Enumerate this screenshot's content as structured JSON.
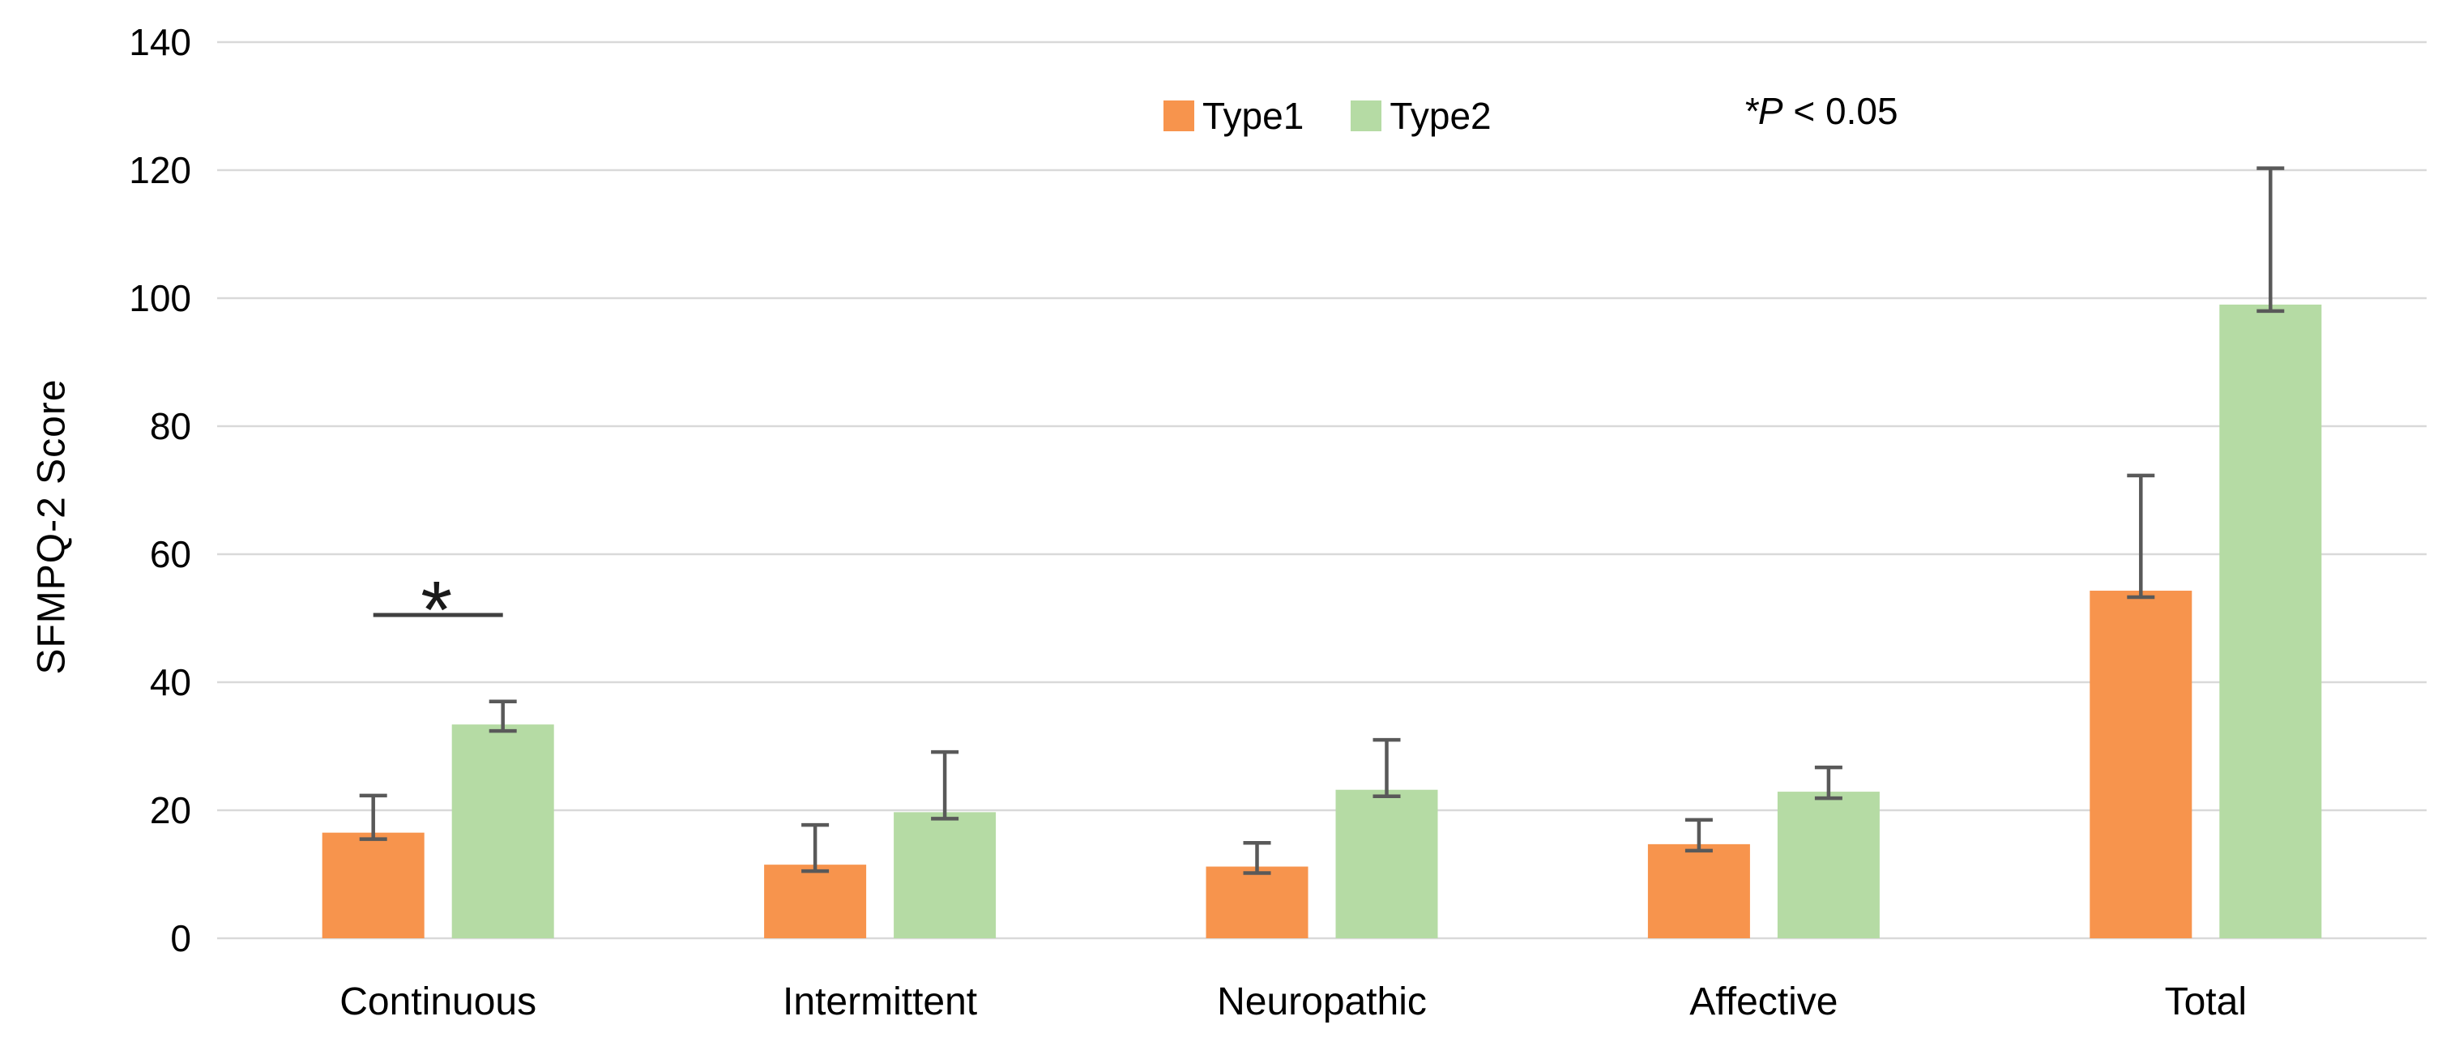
{
  "chart_data": {
    "type": "bar",
    "title": "",
    "ylabel": "SFMPQ-2 Score",
    "xlabel": "",
    "categories": [
      "Continuous",
      "Intermittent",
      "Neuropathic",
      "Affective",
      "Total"
    ],
    "series": [
      {
        "name": "Type1",
        "color": "#F7944D",
        "values": [
          16.5,
          11.5,
          11.2,
          14.7,
          54.3
        ],
        "errors_plus": [
          5.8,
          6.2,
          3.7,
          3.8,
          18.0
        ]
      },
      {
        "name": "Type2",
        "color": "#B5DBA4",
        "values": [
          33.4,
          19.7,
          23.2,
          22.9,
          99.0
        ],
        "errors_plus": [
          3.6,
          9.4,
          7.8,
          3.8,
          21.3
        ]
      }
    ],
    "ylim": [
      0,
      140
    ],
    "ytick_step": 20,
    "yticks": [
      0,
      20,
      40,
      60,
      80,
      100,
      120,
      140
    ],
    "grid": true,
    "legend_position": "top-center",
    "annotation": {
      "star_p": "*P",
      "rest": " < 0.05"
    },
    "significance": {
      "category_index": 0,
      "marker": "*",
      "line_y_value": 50.5
    }
  },
  "colors": {
    "background": "#FFFFFF",
    "gridline": "#D9D9D9",
    "error_bar": "#595959",
    "significance_line": "#404040",
    "text": "#000000",
    "bar_type1": "#F7944D",
    "bar_type2": "#B5DBA4"
  }
}
